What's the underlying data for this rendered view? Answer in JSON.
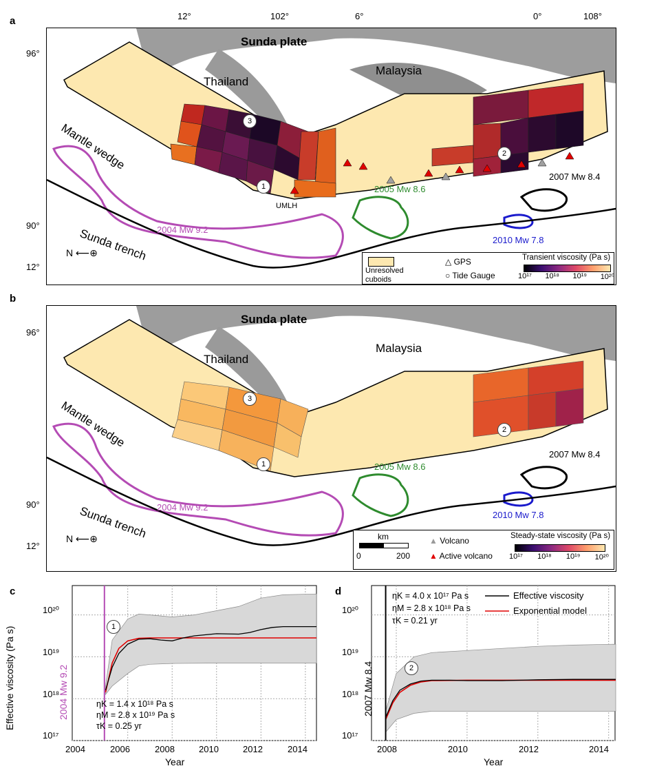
{
  "panels": {
    "a": "a",
    "b": "b",
    "c": "c",
    "d": "d"
  },
  "map": {
    "plate_label": "Sunda plate",
    "country_1": "Thailand",
    "country_2": "Malaysia",
    "wedge_label": "Mantle wedge",
    "trench_label": "Sunda trench",
    "umlh_label": "UMLH",
    "lat_labels": [
      "96°",
      "90°",
      "12°"
    ],
    "top_labels": [
      "12°",
      "102°",
      "6°",
      "0°",
      "108°"
    ],
    "north": "N",
    "earthquakes": {
      "eq2004": "2004 Mw 9.2",
      "eq2005": "2005 Mw 8.6",
      "eq2007": "2007 Mw 8.4",
      "eq2010": "2010 Mw 7.8"
    },
    "site_numbers": [
      "1",
      "2",
      "3"
    ]
  },
  "legend_a": {
    "unresolved": "Unresolved cuboids",
    "gps": "GPS",
    "tide": "Tide Gauge",
    "colorbar_title": "Transient viscosity (Pa s)",
    "ticks": [
      "10¹⁷",
      "10¹⁸",
      "10¹⁹",
      "10²⁰"
    ]
  },
  "legend_b": {
    "scale_unit": "km",
    "scale_ticks": [
      "0",
      "200"
    ],
    "volcano": "Volcano",
    "active_volcano": "Active volcano",
    "colorbar_title": "Steady-state viscosity (Pa s)",
    "ticks": [
      "10¹⁷",
      "10¹⁸",
      "10¹⁹",
      "10²⁰"
    ]
  },
  "colors": {
    "eq2004": "#b44bb4",
    "eq2005": "#2e8b2e",
    "eq2007": "#000000",
    "eq2010": "#1a1acc",
    "model": "#e00000",
    "effective": "#000000",
    "band": "#d8d8d8",
    "unresolved": "#fde8b0"
  },
  "chart_c": {
    "event_label": "2004 Mw 9.2",
    "site": "1",
    "ylabel": "Effective viscosity (Pa s)",
    "xlabel": "Year",
    "params": [
      "ηK = 1.4 x 10¹⁸ Pa s",
      "ηM = 2.8 x 10¹⁹ Pa s",
      "τK = 0.25 yr"
    ],
    "y_tick_labels": [
      "10²⁰",
      "10¹⁹",
      "10¹⁸",
      "10¹⁷"
    ],
    "x_tick_labels": [
      "2004",
      "2006",
      "2008",
      "2010",
      "2012",
      "2014"
    ]
  },
  "chart_d": {
    "event_label": "2007 Mw 8.4",
    "site": "2",
    "xlabel": "Year",
    "params": [
      "ηK = 4.0 x 10¹⁷ Pa s",
      "ηM = 2.8 x 10¹⁸ Pa s",
      "τK = 0.21 yr"
    ],
    "legend": [
      "Effective viscosity",
      "Exponential model"
    ],
    "y_tick_labels": [
      "10²⁰",
      "10¹⁹",
      "10¹⁸",
      "10¹⁷"
    ],
    "x_tick_labels": [
      "2008",
      "2010",
      "2012",
      "2014"
    ]
  },
  "chart_data": [
    {
      "type": "line",
      "panel": "c",
      "xlim": [
        2003.5,
        2014.5
      ],
      "ylim_log10": [
        17,
        20.7
      ],
      "event_year": 2004.95,
      "series": [
        {
          "name": "Effective viscosity",
          "x": [
            2005.0,
            2005.3,
            2005.6,
            2006.0,
            2006.5,
            2007.0,
            2007.5,
            2008.0,
            2008.5,
            2009.0,
            2010.0,
            2011.0,
            2011.5,
            2012.0,
            2012.5,
            2013.0,
            2014.0,
            2014.5
          ],
          "y_log10": [
            18.2,
            18.75,
            19.08,
            19.3,
            19.42,
            19.43,
            19.4,
            19.38,
            19.45,
            19.5,
            19.55,
            19.54,
            19.58,
            19.65,
            19.7,
            19.72,
            19.72,
            19.72
          ]
        },
        {
          "name": "Exponential model",
          "x": [
            2005.0,
            2005.3,
            2005.6,
            2006.0,
            2006.5,
            2007.0,
            2008.0,
            2010.0,
            2012.0,
            2014.5
          ],
          "y_log10": [
            18.15,
            18.85,
            19.2,
            19.38,
            19.44,
            19.45,
            19.45,
            19.45,
            19.45,
            19.45
          ]
        },
        {
          "name": "upper",
          "x": [
            2005.0,
            2005.3,
            2006.0,
            2006.5,
            2007.0,
            2008.0,
            2009.0,
            2010.0,
            2011.0,
            2012.0,
            2013.0,
            2014.5
          ],
          "y_log10": [
            18.3,
            19.4,
            19.9,
            20.02,
            20.0,
            19.95,
            20.0,
            20.1,
            20.2,
            20.4,
            20.48,
            20.5
          ]
        },
        {
          "name": "lower",
          "x": [
            2005.0,
            2005.3,
            2006.0,
            2006.5,
            2007.0,
            2008.0,
            2010.0,
            2012.0,
            2014.5
          ],
          "y_log10": [
            18.1,
            18.3,
            18.6,
            18.78,
            18.82,
            18.84,
            18.85,
            18.85,
            18.85
          ]
        }
      ]
    },
    {
      "type": "line",
      "panel": "d",
      "xlim": [
        2007.3,
        2014.2
      ],
      "ylim_log10": [
        17,
        20.7
      ],
      "event_year": 2007.7,
      "series": [
        {
          "name": "Effective viscosity",
          "x": [
            2007.7,
            2007.9,
            2008.1,
            2008.4,
            2008.7,
            2009.0,
            2009.5,
            2010.0,
            2011.0,
            2012.0,
            2013.0,
            2014.2
          ],
          "y_log10": [
            17.55,
            17.95,
            18.2,
            18.35,
            18.42,
            18.44,
            18.44,
            18.43,
            18.43,
            18.45,
            18.46,
            18.46
          ]
        },
        {
          "name": "Exponential model",
          "x": [
            2007.7,
            2007.9,
            2008.1,
            2008.4,
            2008.7,
            2009.0,
            2010.0,
            2012.0,
            2014.2
          ],
          "y_log10": [
            17.5,
            17.9,
            18.15,
            18.32,
            18.4,
            18.43,
            18.44,
            18.44,
            18.44
          ]
        },
        {
          "name": "upper",
          "x": [
            2007.7,
            2008.0,
            2008.5,
            2009.0,
            2010.0,
            2011.0,
            2012.0,
            2013.0,
            2014.2
          ],
          "y_log10": [
            17.7,
            18.6,
            19.0,
            19.1,
            19.15,
            19.2,
            19.25,
            19.28,
            19.3
          ]
        },
        {
          "name": "lower",
          "x": [
            2007.7,
            2008.0,
            2008.5,
            2009.0,
            2010.0,
            2012.0,
            2014.2
          ],
          "y_log10": [
            17.2,
            17.5,
            17.65,
            17.7,
            17.7,
            17.7,
            17.7
          ]
        }
      ]
    }
  ]
}
